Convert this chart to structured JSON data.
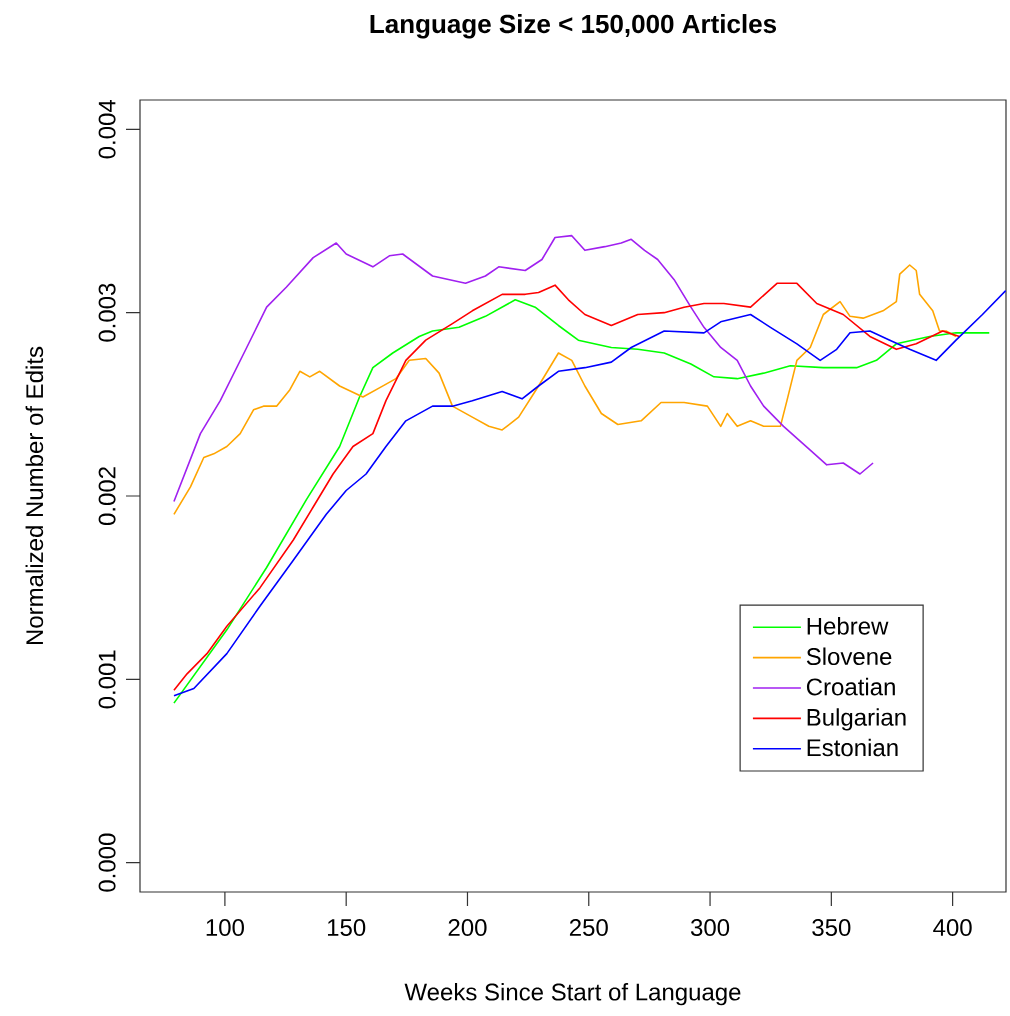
{
  "chart_data": {
    "type": "line",
    "title": "Language Size < 150,000 Articles",
    "xlabel": "Weeks Since Start of Language",
    "ylabel": "Normalized Number of Edits",
    "xlim": [
      65,
      422
    ],
    "ylim": [
      -0.00016,
      0.00416
    ],
    "xticks": [
      100,
      150,
      200,
      250,
      300,
      350,
      400
    ],
    "yticks": [
      {
        "value": 0,
        "label": "0.000"
      },
      0.001,
      0.002,
      0.003,
      0.004
    ],
    "legend": "bottom right",
    "series": [
      {
        "name": "Hebrew",
        "color": "#00ff00",
        "x": [
          79,
          100.8,
          117.2,
          133.6,
          147.3,
          155.5,
          161.0,
          169.2,
          180.1,
          185.6,
          196.5,
          207.4,
          219.7,
          227.9,
          237.5,
          245.7,
          259.3,
          270.2,
          281.1,
          292.1,
          301.6,
          311.2,
          322.1,
          333.1,
          346.7,
          360.4,
          368.6,
          376.8,
          390.5,
          401.4,
          415.1
        ],
        "values": [
          0.00087,
          0.00127,
          0.00161,
          0.00198,
          0.00227,
          0.00254,
          0.0027,
          0.00278,
          0.00287,
          0.0029,
          0.00292,
          0.00298,
          0.00307,
          0.00303,
          0.00293,
          0.00285,
          0.00281,
          0.0028,
          0.00278,
          0.00272,
          0.00265,
          0.00264,
          0.00267,
          0.00271,
          0.0027,
          0.0027,
          0.00274,
          0.00283,
          0.00287,
          0.00289,
          0.00289
        ]
      },
      {
        "name": "Slovene",
        "color": "#ffa500",
        "x": [
          79,
          85.8,
          91.3,
          95.4,
          100.8,
          106.3,
          111.8,
          115.9,
          121.3,
          126.8,
          130.9,
          135.0,
          139.1,
          147.3,
          156.9,
          163.7,
          170.5,
          176.0,
          182.8,
          188.3,
          193.8,
          202.0,
          208.8,
          214.3,
          221.1,
          229.3,
          237.5,
          243.0,
          248.4,
          255.2,
          262.0,
          271.6,
          279.8,
          289.3,
          298.9,
          304.4,
          307.1,
          311.2,
          316.7,
          322.1,
          329.0,
          331.7,
          335.8,
          341.3,
          346.7,
          353.6,
          357.7,
          363.1,
          371.3,
          376.8,
          378.2,
          382.3,
          385.0,
          386.4,
          391.8,
          394.6,
          397.3,
          401.4
        ],
        "values": [
          0.0019,
          0.00205,
          0.00221,
          0.00223,
          0.00227,
          0.00234,
          0.00247,
          0.00249,
          0.00249,
          0.00258,
          0.00268,
          0.00265,
          0.00268,
          0.0026,
          0.00254,
          0.00259,
          0.00264,
          0.00274,
          0.00275,
          0.00267,
          0.00249,
          0.00243,
          0.00238,
          0.00236,
          0.00243,
          0.0026,
          0.00278,
          0.00274,
          0.0026,
          0.00245,
          0.00239,
          0.00241,
          0.00251,
          0.00251,
          0.00249,
          0.00238,
          0.00245,
          0.00238,
          0.00241,
          0.00238,
          0.00238,
          0.00252,
          0.00274,
          0.00281,
          0.00299,
          0.00306,
          0.00298,
          0.00297,
          0.00301,
          0.00306,
          0.00321,
          0.00326,
          0.00323,
          0.0031,
          0.00301,
          0.0029,
          0.0029,
          0.00287
        ]
      },
      {
        "name": "Croatian",
        "color": "#a020f0",
        "x": [
          79.0,
          89.9,
          98.1,
          109.0,
          117.2,
          125.4,
          136.4,
          145.9,
          150.0,
          161.0,
          167.8,
          173.3,
          185.6,
          199.2,
          207.4,
          212.9,
          223.8,
          230.7,
          236.1,
          243.0,
          248.4,
          256.6,
          263.4,
          267.5,
          273.0,
          278.4,
          285.2,
          292.1,
          297.5,
          304.4,
          311.2,
          316.7,
          322.1,
          330.3,
          341.3,
          348.1,
          354.9,
          361.8,
          367.2
        ],
        "values": [
          0.00197,
          0.00234,
          0.00252,
          0.00281,
          0.00303,
          0.00314,
          0.0033,
          0.00338,
          0.00332,
          0.00325,
          0.00331,
          0.00332,
          0.0032,
          0.00316,
          0.0032,
          0.00325,
          0.00323,
          0.00329,
          0.00341,
          0.00342,
          0.00334,
          0.00336,
          0.00338,
          0.0034,
          0.00334,
          0.00329,
          0.00318,
          0.00303,
          0.00292,
          0.00281,
          0.00274,
          0.0026,
          0.00249,
          0.00238,
          0.00225,
          0.00217,
          0.00218,
          0.00212,
          0.00218
        ]
      },
      {
        "name": "Bulgarian",
        "color": "#ff0000",
        "x": [
          79,
          84.4,
          92.6,
          100.8,
          114.5,
          128.2,
          136.4,
          144.6,
          152.8,
          161.0,
          166.4,
          174.6,
          182.8,
          193.8,
          202.0,
          214.3,
          223.8,
          229.3,
          236.1,
          241.6,
          248.4,
          259.3,
          270.2,
          281.1,
          289.3,
          297.5,
          305.7,
          316.7,
          327.6,
          335.8,
          344.0,
          354.9,
          365.9,
          376.8,
          385.0,
          395.9,
          402.8
        ],
        "values": [
          0.00094,
          0.00103,
          0.00114,
          0.00129,
          0.0015,
          0.00176,
          0.00194,
          0.00212,
          0.00227,
          0.00234,
          0.00252,
          0.00274,
          0.00285,
          0.00294,
          0.00301,
          0.0031,
          0.0031,
          0.00311,
          0.00315,
          0.00307,
          0.00299,
          0.00293,
          0.00299,
          0.003,
          0.00303,
          0.00305,
          0.00305,
          0.00303,
          0.00316,
          0.00316,
          0.00305,
          0.00299,
          0.00287,
          0.0028,
          0.00283,
          0.0029,
          0.00287
        ]
      },
      {
        "name": "Estonian",
        "color": "#0000ff",
        "x": [
          79,
          87.2,
          100.8,
          114.5,
          128.2,
          141.8,
          150.0,
          158.2,
          166.4,
          174.6,
          185.6,
          193.8,
          202.0,
          214.3,
          222.5,
          229.3,
          237.5,
          248.4,
          259.3,
          267.5,
          281.1,
          297.5,
          304.4,
          316.7,
          324.9,
          335.8,
          345.4,
          352.2,
          357.7,
          365.9,
          374.1,
          382.3,
          393.2,
          401.4,
          412.3,
          421.9
        ],
        "values": [
          0.00091,
          0.00095,
          0.00114,
          0.0014,
          0.00165,
          0.0019,
          0.00203,
          0.00212,
          0.00227,
          0.00241,
          0.00249,
          0.00249,
          0.00252,
          0.00257,
          0.00253,
          0.0026,
          0.00268,
          0.0027,
          0.00273,
          0.00281,
          0.0029,
          0.00289,
          0.00295,
          0.00299,
          0.00292,
          0.00283,
          0.00274,
          0.0028,
          0.00289,
          0.0029,
          0.00285,
          0.0028,
          0.00274,
          0.00285,
          0.00299,
          0.00312
        ]
      }
    ]
  }
}
